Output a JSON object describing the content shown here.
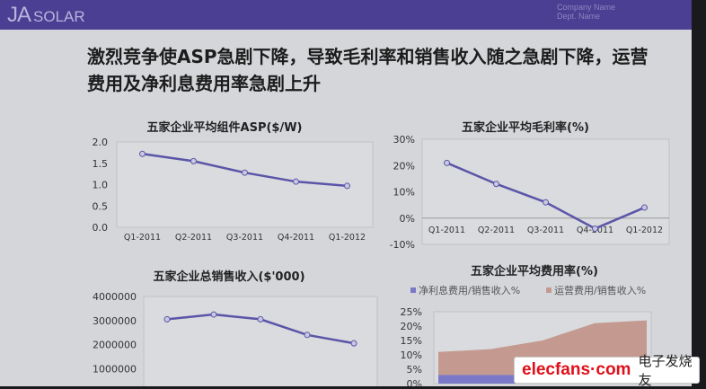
{
  "header": {
    "logo_main": "JA",
    "logo_sub": "SOLAR",
    "company": "Company Name",
    "dept": "Dept. Name"
  },
  "headline": "激烈竞争使ASP急剧下降，导致毛利率和销售收入随之急剧下降，运营费用及净利息费用率急剧上升",
  "watermark": {
    "en": "elecfans·com",
    "cn": "电子发烧友"
  },
  "colors": {
    "line": "#5a55a8",
    "area_interest": "#7b78c8",
    "area_operating": "#c49a90",
    "plot_bg": "#d9dbde",
    "grid": "#bfc1c6"
  },
  "chart_data": [
    {
      "type": "line",
      "title": "五家企业平均组件ASP($/W)",
      "categories": [
        "Q1-2011",
        "Q2-2011",
        "Q3-2011",
        "Q4-2011",
        "Q1-2012"
      ],
      "values": [
        1.72,
        1.55,
        1.28,
        1.07,
        0.97
      ],
      "ylim": [
        0,
        2
      ],
      "yticks": [
        "0.0",
        "0.5",
        "1.0",
        "1.5",
        "2.0"
      ],
      "grid": false
    },
    {
      "type": "line",
      "title": "五家企业平均毛利率(%)",
      "categories": [
        "Q1-2011",
        "Q2-2011",
        "Q3-2011",
        "Q4-2011",
        "Q1-2012"
      ],
      "values": [
        21,
        13,
        6,
        -4,
        4
      ],
      "ylim": [
        -10,
        30
      ],
      "yticks": [
        "-10%",
        "0%",
        "10%",
        "20%",
        "30%"
      ],
      "grid": false
    },
    {
      "type": "line",
      "title": "五家企业总销售收入($'000)",
      "categories": [
        "Q1-2011",
        "Q2-2011",
        "Q3-2011",
        "Q4-2011",
        "Q1-2012"
      ],
      "values": [
        3050000,
        3250000,
        3050000,
        2400000,
        2050000
      ],
      "ylim": [
        0,
        4000000
      ],
      "yticks": [
        "1000000",
        "2000000",
        "3000000",
        "4000000"
      ],
      "grid": false
    },
    {
      "type": "area",
      "stacked": true,
      "title": "五家企业平均费用率(%)",
      "categories": [
        "Q1-2011",
        "Q2-2011",
        "Q3-2011",
        "Q4-2011",
        "Q1-2012"
      ],
      "series": [
        {
          "name": "净利息费用/销售收入%",
          "values": [
            3,
            3,
            3,
            3,
            3
          ]
        },
        {
          "name": "运营费用/销售收入%",
          "values": [
            8,
            9,
            12,
            18,
            19
          ]
        }
      ],
      "ylim": [
        0,
        25
      ],
      "yticks": [
        "0%",
        "5%",
        "10%",
        "15%",
        "20%",
        "25%"
      ],
      "legend": "top"
    }
  ]
}
